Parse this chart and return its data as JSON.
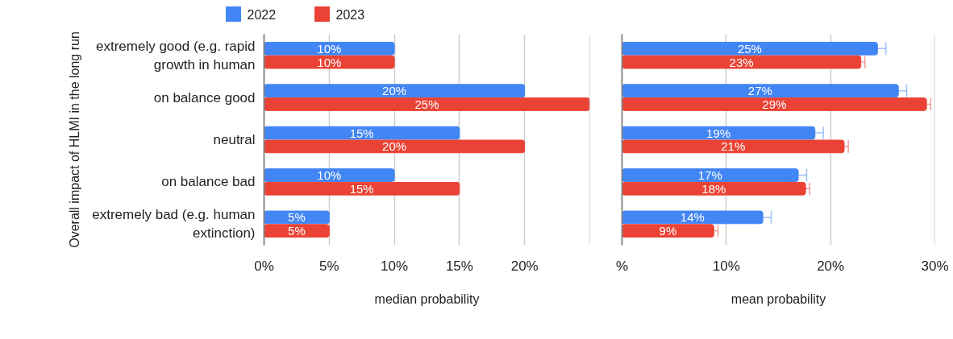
{
  "chart_data": [
    {
      "type": "bar",
      "orientation": "horizontal",
      "ylabel": "Overall impact of HLMI in the long run",
      "xlabel": "median probability",
      "categories": [
        "extremely good (e.g. rapid growth in human",
        "on balance good",
        "neutral",
        "on balance bad",
        "extremely bad (e.g. human extinction)"
      ],
      "series": [
        {
          "name": "2022",
          "color": "#4285f4",
          "values": [
            10,
            20,
            15,
            10,
            5
          ],
          "value_labels": [
            "10%",
            "20%",
            "15%",
            "10%",
            "5%"
          ]
        },
        {
          "name": "2023",
          "color": "#ea4335",
          "values": [
            10,
            25,
            20,
            15,
            5
          ],
          "value_labels": [
            "10%",
            "25%",
            "20%",
            "15%",
            "5%"
          ]
        }
      ],
      "xlim": [
        0,
        25
      ],
      "xticks": [
        {
          "value": 0,
          "label": "0%"
        },
        {
          "value": 5,
          "label": "5%"
        },
        {
          "value": 10,
          "label": "10%"
        },
        {
          "value": 15,
          "label": "15%"
        },
        {
          "value": 20,
          "label": "20%"
        },
        {
          "value": 25,
          "label": null
        }
      ],
      "grid": "x",
      "legend": "top"
    },
    {
      "type": "bar",
      "orientation": "horizontal",
      "xlabel": "mean probability",
      "categories": [
        "extremely good (e.g. rapid growth in human",
        "on balance good",
        "neutral",
        "on balance bad",
        "extremely bad (e.g. human extinction)"
      ],
      "series": [
        {
          "name": "2022",
          "color": "#4285f4",
          "values": [
            24.5,
            26.5,
            18.5,
            16.9,
            13.5
          ],
          "errors": [
            0.8,
            0.8,
            0.8,
            0.8,
            0.8
          ],
          "value_labels": [
            "25%",
            "27%",
            "19%",
            "17%",
            "14%"
          ]
        },
        {
          "name": "2023",
          "color": "#ea4335",
          "values": [
            22.9,
            29.2,
            21.3,
            17.6,
            8.8
          ],
          "errors": [
            0.4,
            0.4,
            0.4,
            0.4,
            0.4
          ],
          "value_labels": [
            "23%",
            "29%",
            "21%",
            "18%",
            "9%"
          ]
        }
      ],
      "xlim": [
        0,
        30
      ],
      "xticks": [
        {
          "value": 0,
          "label": "%"
        },
        {
          "value": 10,
          "label": "10%"
        },
        {
          "value": 20,
          "label": "20%"
        },
        {
          "value": 30,
          "label": "30%"
        }
      ],
      "grid": "x",
      "tick_labels": "x"
    }
  ]
}
